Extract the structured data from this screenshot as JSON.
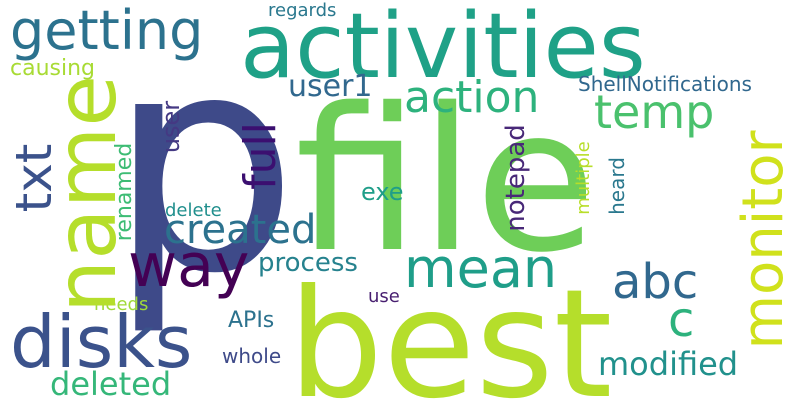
{
  "words": [
    {
      "text": "p",
      "color": "#3e4a89",
      "orientation": "horizontal"
    },
    {
      "text": "file",
      "color": "#6ece58",
      "orientation": "horizontal"
    },
    {
      "text": "best",
      "color": "#b5de2b",
      "orientation": "horizontal"
    },
    {
      "text": "activities",
      "color": "#1fa187",
      "orientation": "horizontal"
    },
    {
      "text": "name",
      "color": "#b5de2b",
      "orientation": "vertical"
    },
    {
      "text": "getting",
      "color": "#2c728e",
      "orientation": "horizontal"
    },
    {
      "text": "disks",
      "color": "#3b528b",
      "orientation": "horizontal"
    },
    {
      "text": "way",
      "color": "#440154",
      "orientation": "horizontal"
    },
    {
      "text": "mean",
      "color": "#1f9e89",
      "orientation": "horizontal"
    },
    {
      "text": "monitor",
      "color": "#d0e11c",
      "orientation": "vertical"
    },
    {
      "text": "txt",
      "color": "#3b528b",
      "orientation": "vertical"
    },
    {
      "text": "action",
      "color": "#2db27d",
      "orientation": "horizontal"
    },
    {
      "text": "temp",
      "color": "#4ac16d",
      "orientation": "horizontal"
    },
    {
      "text": "full",
      "color": "#3b0f70",
      "orientation": "vertical"
    },
    {
      "text": "created",
      "color": "#2c728e",
      "orientation": "horizontal"
    },
    {
      "text": "abc",
      "color": "#31688e",
      "orientation": "horizontal"
    },
    {
      "text": "c",
      "color": "#2db27d",
      "orientation": "horizontal"
    },
    {
      "text": "deleted",
      "color": "#35b779",
      "orientation": "horizontal"
    },
    {
      "text": "modified",
      "color": "#21918c",
      "orientation": "horizontal"
    },
    {
      "text": "user1",
      "color": "#31688e",
      "orientation": "horizontal"
    },
    {
      "text": "process",
      "color": "#26828e",
      "orientation": "horizontal"
    },
    {
      "text": "exe",
      "color": "#1f9e89",
      "orientation": "horizontal"
    },
    {
      "text": "notepad",
      "color": "#482878",
      "orientation": "vertical"
    },
    {
      "text": "user",
      "color": "#443983",
      "orientation": "vertical"
    },
    {
      "text": "renamed",
      "color": "#3dbc74",
      "orientation": "vertical"
    },
    {
      "text": "delete",
      "color": "#218f8d",
      "orientation": "horizontal"
    },
    {
      "text": "multiple",
      "color": "#b8de29",
      "orientation": "vertical"
    },
    {
      "text": "heard",
      "color": "#2a788e",
      "orientation": "vertical"
    },
    {
      "text": "ShellNotifications",
      "color": "#31688e",
      "orientation": "horizontal"
    },
    {
      "text": "causing",
      "color": "#a8db34",
      "orientation": "horizontal"
    },
    {
      "text": "regards",
      "color": "#2a788e",
      "orientation": "horizontal"
    },
    {
      "text": "APIs",
      "color": "#2c728e",
      "orientation": "horizontal"
    },
    {
      "text": "whole",
      "color": "#3e4a89",
      "orientation": "horizontal"
    },
    {
      "text": "use",
      "color": "#481f70",
      "orientation": "horizontal"
    },
    {
      "text": "needs",
      "color": "#a0da39",
      "orientation": "horizontal"
    }
  ]
}
